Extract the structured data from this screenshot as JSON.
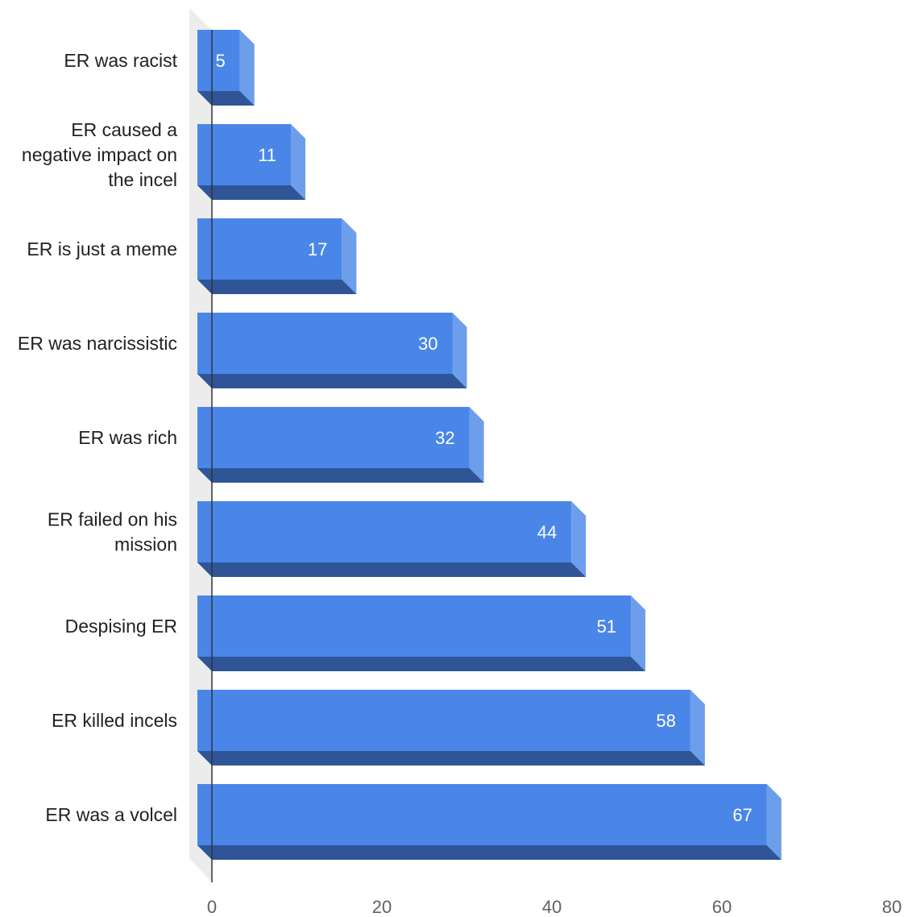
{
  "chart_data": {
    "type": "bar",
    "orientation": "horizontal",
    "style": "3d",
    "title": "",
    "xlabel": "",
    "ylabel": "",
    "categories": [
      [
        "ER was racist"
      ],
      [
        "ER caused a",
        "negative impact on",
        "the incel"
      ],
      [
        "ER is just a meme"
      ],
      [
        "ER was narcissistic"
      ],
      [
        "ER was rich"
      ],
      [
        "ER failed on his",
        "mission"
      ],
      [
        "Despising ER"
      ],
      [
        "ER killed incels"
      ],
      [
        "ER was a volcel"
      ]
    ],
    "values": [
      5,
      11,
      17,
      30,
      32,
      44,
      51,
      58,
      67
    ],
    "xlim": [
      0,
      80
    ],
    "xticks": [
      "0",
      "20",
      "40",
      "60",
      "80"
    ],
    "grid": false,
    "legend": "none",
    "colors": {
      "bar_front": "#4a86e8",
      "bar_side": "#6d9eeb",
      "bar_bottom": "#2f5597",
      "wall": "#ececec",
      "axis": "#333333"
    }
  }
}
